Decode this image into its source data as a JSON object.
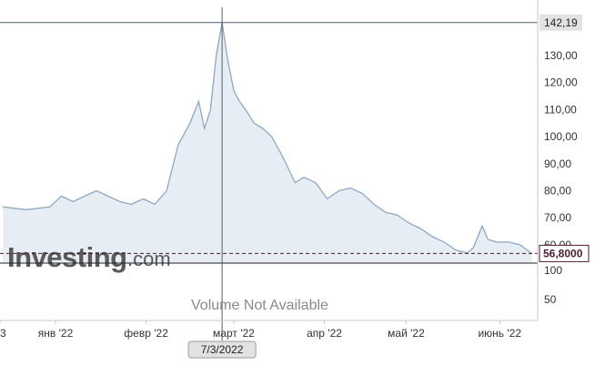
{
  "chart_data": {
    "type": "area",
    "brand": {
      "logo": "Investing",
      "logo_suffix": ".com"
    },
    "x_ticks": [
      "3",
      "янв '22",
      "февр '22",
      "март '22",
      "апр '22",
      "май '22",
      "июнь '22"
    ],
    "y_ticks": [
      "130,00",
      "120,00",
      "110,00",
      "100,00",
      "90,00",
      "80,00",
      "70,00",
      "60,00"
    ],
    "volume_ticks": [
      "100",
      "50"
    ],
    "volume_text": "Volume Not Available",
    "crosshair": {
      "date": "7/3/2022",
      "value": 142.19,
      "label": "142,19"
    },
    "last_price": {
      "value": 56.8,
      "label": "56,8000"
    },
    "ylim": [
      54,
      145
    ],
    "series": [
      {
        "x": [
          "2021-12-18",
          "2021-12-26",
          "2022-01-03",
          "2022-01-07",
          "2022-01-11",
          "2022-01-15",
          "2022-01-19",
          "2022-01-23",
          "2022-01-27",
          "2022-01-31",
          "2022-02-04",
          "2022-02-08",
          "2022-02-12",
          "2022-02-16",
          "2022-02-20",
          "2022-02-23",
          "2022-02-25",
          "2022-02-27",
          "2022-03-01",
          "2022-03-03",
          "2022-03-05",
          "2022-03-07",
          "2022-03-09",
          "2022-03-11",
          "2022-03-14",
          "2022-03-17",
          "2022-03-20",
          "2022-03-24",
          "2022-03-28",
          "2022-03-31",
          "2022-04-04",
          "2022-04-08",
          "2022-04-12",
          "2022-04-16",
          "2022-04-20",
          "2022-04-24",
          "2022-04-28",
          "2022-05-02",
          "2022-05-06",
          "2022-05-10",
          "2022-05-14",
          "2022-05-18",
          "2022-05-22",
          "2022-05-26",
          "2022-05-28",
          "2022-05-31",
          "2022-06-02",
          "2022-06-05",
          "2022-06-09",
          "2022-06-13",
          "2022-06-17"
        ],
        "y": [
          74,
          73,
          74,
          78,
          76,
          78,
          80,
          78,
          76,
          75,
          77,
          75,
          80,
          97,
          105,
          113,
          103,
          110,
          130,
          142.19,
          128,
          117,
          113,
          110,
          105,
          103,
          100,
          92,
          83,
          85,
          83,
          77,
          80,
          81,
          79,
          75,
          72,
          71,
          68,
          66,
          63,
          61,
          58,
          57,
          59,
          67,
          62,
          61,
          61,
          60,
          56.8
        ]
      }
    ],
    "colors": {
      "line": "#8fa8c0",
      "fill": "#e6edf5",
      "crosshair": "#54606b",
      "last_price_line": "#4a1c2c",
      "axis": "#c8c8c8",
      "tag_bg": "#e2e2e2"
    }
  }
}
